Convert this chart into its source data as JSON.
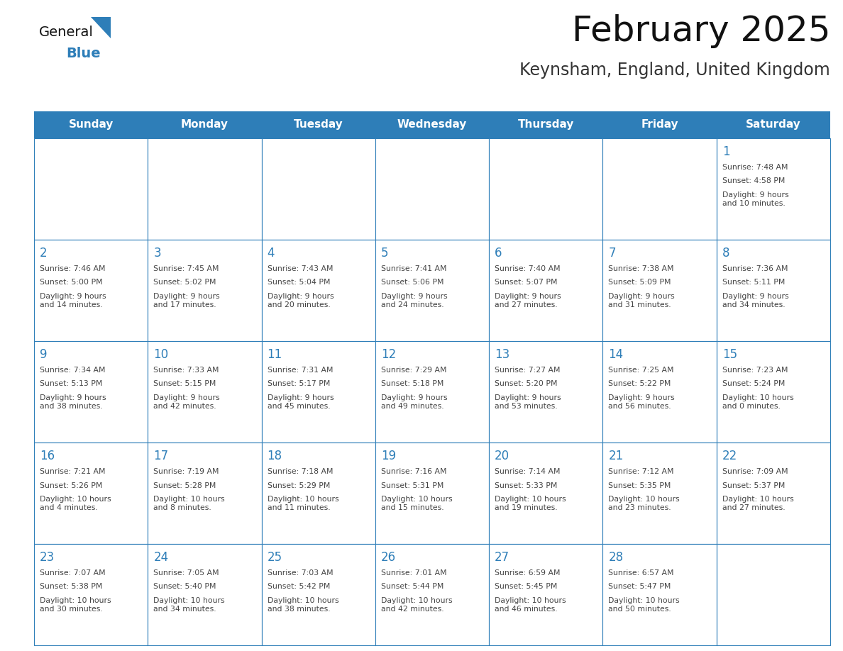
{
  "title": "February 2025",
  "subtitle": "Keynsham, England, United Kingdom",
  "days_of_week": [
    "Sunday",
    "Monday",
    "Tuesday",
    "Wednesday",
    "Thursday",
    "Friday",
    "Saturday"
  ],
  "header_bg": "#2E7EB8",
  "header_text": "#FFFFFF",
  "cell_border": "#2E7EB8",
  "cell_bg": "#FFFFFF",
  "day_number_color": "#2E7EB8",
  "info_text_color": "#444444",
  "title_color": "#111111",
  "subtitle_color": "#333333",
  "logo_general_color": "#111111",
  "logo_blue_color": "#2E7EB8",
  "calendar": [
    [
      null,
      null,
      null,
      null,
      null,
      null,
      1
    ],
    [
      2,
      3,
      4,
      5,
      6,
      7,
      8
    ],
    [
      9,
      10,
      11,
      12,
      13,
      14,
      15
    ],
    [
      16,
      17,
      18,
      19,
      20,
      21,
      22
    ],
    [
      23,
      24,
      25,
      26,
      27,
      28,
      null
    ]
  ],
  "sun_info": {
    "1": {
      "sunrise": "7:48 AM",
      "sunset": "4:58 PM",
      "daylight": "9 hours\nand 10 minutes."
    },
    "2": {
      "sunrise": "7:46 AM",
      "sunset": "5:00 PM",
      "daylight": "9 hours\nand 14 minutes."
    },
    "3": {
      "sunrise": "7:45 AM",
      "sunset": "5:02 PM",
      "daylight": "9 hours\nand 17 minutes."
    },
    "4": {
      "sunrise": "7:43 AM",
      "sunset": "5:04 PM",
      "daylight": "9 hours\nand 20 minutes."
    },
    "5": {
      "sunrise": "7:41 AM",
      "sunset": "5:06 PM",
      "daylight": "9 hours\nand 24 minutes."
    },
    "6": {
      "sunrise": "7:40 AM",
      "sunset": "5:07 PM",
      "daylight": "9 hours\nand 27 minutes."
    },
    "7": {
      "sunrise": "7:38 AM",
      "sunset": "5:09 PM",
      "daylight": "9 hours\nand 31 minutes."
    },
    "8": {
      "sunrise": "7:36 AM",
      "sunset": "5:11 PM",
      "daylight": "9 hours\nand 34 minutes."
    },
    "9": {
      "sunrise": "7:34 AM",
      "sunset": "5:13 PM",
      "daylight": "9 hours\nand 38 minutes."
    },
    "10": {
      "sunrise": "7:33 AM",
      "sunset": "5:15 PM",
      "daylight": "9 hours\nand 42 minutes."
    },
    "11": {
      "sunrise": "7:31 AM",
      "sunset": "5:17 PM",
      "daylight": "9 hours\nand 45 minutes."
    },
    "12": {
      "sunrise": "7:29 AM",
      "sunset": "5:18 PM",
      "daylight": "9 hours\nand 49 minutes."
    },
    "13": {
      "sunrise": "7:27 AM",
      "sunset": "5:20 PM",
      "daylight": "9 hours\nand 53 minutes."
    },
    "14": {
      "sunrise": "7:25 AM",
      "sunset": "5:22 PM",
      "daylight": "9 hours\nand 56 minutes."
    },
    "15": {
      "sunrise": "7:23 AM",
      "sunset": "5:24 PM",
      "daylight": "10 hours\nand 0 minutes."
    },
    "16": {
      "sunrise": "7:21 AM",
      "sunset": "5:26 PM",
      "daylight": "10 hours\nand 4 minutes."
    },
    "17": {
      "sunrise": "7:19 AM",
      "sunset": "5:28 PM",
      "daylight": "10 hours\nand 8 minutes."
    },
    "18": {
      "sunrise": "7:18 AM",
      "sunset": "5:29 PM",
      "daylight": "10 hours\nand 11 minutes."
    },
    "19": {
      "sunrise": "7:16 AM",
      "sunset": "5:31 PM",
      "daylight": "10 hours\nand 15 minutes."
    },
    "20": {
      "sunrise": "7:14 AM",
      "sunset": "5:33 PM",
      "daylight": "10 hours\nand 19 minutes."
    },
    "21": {
      "sunrise": "7:12 AM",
      "sunset": "5:35 PM",
      "daylight": "10 hours\nand 23 minutes."
    },
    "22": {
      "sunrise": "7:09 AM",
      "sunset": "5:37 PM",
      "daylight": "10 hours\nand 27 minutes."
    },
    "23": {
      "sunrise": "7:07 AM",
      "sunset": "5:38 PM",
      "daylight": "10 hours\nand 30 minutes."
    },
    "24": {
      "sunrise": "7:05 AM",
      "sunset": "5:40 PM",
      "daylight": "10 hours\nand 34 minutes."
    },
    "25": {
      "sunrise": "7:03 AM",
      "sunset": "5:42 PM",
      "daylight": "10 hours\nand 38 minutes."
    },
    "26": {
      "sunrise": "7:01 AM",
      "sunset": "5:44 PM",
      "daylight": "10 hours\nand 42 minutes."
    },
    "27": {
      "sunrise": "6:59 AM",
      "sunset": "5:45 PM",
      "daylight": "10 hours\nand 46 minutes."
    },
    "28": {
      "sunrise": "6:57 AM",
      "sunset": "5:47 PM",
      "daylight": "10 hours\nand 50 minutes."
    }
  }
}
